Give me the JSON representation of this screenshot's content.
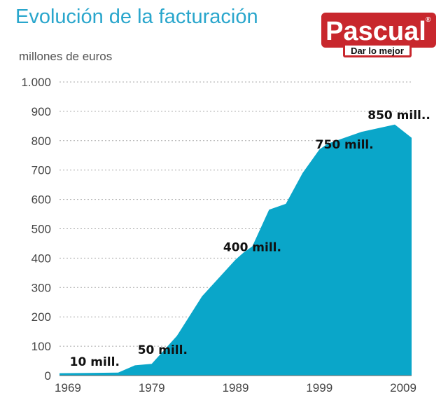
{
  "brand": {
    "name": "Pascual",
    "registered_mark": "®",
    "tagline": "Dar lo mejor",
    "color": "#c8272d"
  },
  "chart_data": {
    "type": "area",
    "title": "Evolución de la facturación",
    "ylabel": "millones de euros",
    "xlabel": "",
    "color": "#0aa6c9",
    "ylim": [
      0,
      1000
    ],
    "xlim": [
      1968,
      2010
    ],
    "yticks": [
      0,
      100,
      200,
      300,
      400,
      500,
      600,
      700,
      800,
      900,
      1000
    ],
    "ytick_labels": [
      "0",
      "100",
      "200",
      "300",
      "400",
      "500",
      "600",
      "700",
      "800",
      "900",
      "1.000"
    ],
    "xticks": [
      1969,
      1979,
      1989,
      1999,
      2009
    ],
    "xtick_labels": [
      "1969",
      "1979",
      "1989",
      "1999",
      "2009"
    ],
    "grid": true,
    "x": [
      1968,
      1975,
      1977,
      1979,
      1982,
      1985,
      1989,
      1990,
      1991,
      1993,
      1995,
      1997,
      1999,
      2000,
      2004,
      2008,
      2010
    ],
    "y": [
      8,
      10,
      35,
      40,
      135,
      270,
      395,
      420,
      440,
      565,
      585,
      690,
      770,
      790,
      830,
      855,
      810
    ],
    "annotations": [
      {
        "x": 1972.2,
        "y": 10,
        "text": "10 mill."
      },
      {
        "x": 1980.3,
        "y": 50,
        "text": "50 mill."
      },
      {
        "x": 1991,
        "y": 400,
        "text": "400 mill."
      },
      {
        "x": 2002,
        "y": 750,
        "text": "750 mill."
      },
      {
        "x": 2008.5,
        "y": 850,
        "text": "850 mill.."
      }
    ]
  }
}
